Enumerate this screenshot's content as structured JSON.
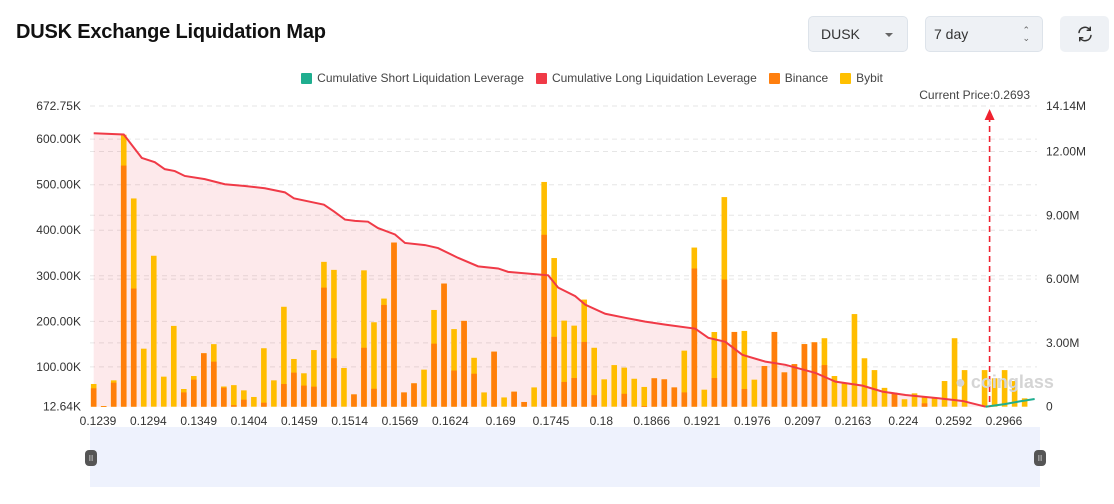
{
  "header": {
    "title": "DUSK Exchange Liquidation Map",
    "symbol_select": "DUSK",
    "period_select": "7 day",
    "refresh_icon": "refresh-icon"
  },
  "watermark": "coinglass",
  "chart_data": {
    "type": "bar",
    "title": "",
    "legend": {
      "placement": "top-center",
      "items": [
        {
          "name": "Cumulative Short Liquidation Leverage",
          "color": "#1fae8f"
        },
        {
          "name": "Cumulative Long Liquidation Leverage",
          "color": "#f03a47"
        },
        {
          "name": "Binance",
          "color": "#ff7f0e"
        },
        {
          "name": "Bybit",
          "color": "#ffc000"
        }
      ]
    },
    "current_price_label": "Current Price:0.2693",
    "current_price_bin": 89,
    "x_tick_labels": [
      "0.1239",
      "0.1294",
      "0.1349",
      "0.1404",
      "0.1459",
      "0.1514",
      "0.1569",
      "0.1624",
      "0.169",
      "0.1745",
      "0.18",
      "0.1866",
      "0.1921",
      "0.1976",
      "0.2097",
      "0.2163",
      "0.224",
      "0.2592",
      "0.2966"
    ],
    "y_left": {
      "min": 12640,
      "max": 672750,
      "tick_labels": [
        "672.75K",
        "600.00K",
        "500.00K",
        "400.00K",
        "300.00K",
        "200.00K",
        "100.00K",
        "12.64K"
      ],
      "ticks": [
        672750,
        600000,
        500000,
        400000,
        300000,
        200000,
        100000,
        12640
      ]
    },
    "y_right": {
      "min": 0,
      "max": 14140000,
      "tick_labels": [
        "14.14M",
        "12.00M",
        "9.00M",
        "6.00M",
        "3.00M",
        "0"
      ],
      "ticks": [
        14140000,
        12000000,
        9000000,
        6000000,
        3000000,
        0
      ]
    },
    "grid": true,
    "series": [
      {
        "name": "Binance",
        "unit": "K",
        "values": [
          53,
          14,
          65.4,
          542,
          272,
          0,
          0,
          0,
          0,
          44,
          72,
          130,
          111.5,
          54.4,
          16,
          28,
          0,
          21.4,
          0,
          62.5,
          87.4,
          59,
          56.6,
          274,
          119,
          0,
          39.7,
          142,
          52,
          236,
          373,
          44,
          64,
          0,
          151,
          283,
          92,
          201,
          85,
          0,
          133.5,
          0,
          45.6,
          23,
          0,
          390,
          166,
          67,
          75.6,
          154.8,
          38,
          0,
          0,
          41,
          0,
          14,
          75,
          72.7,
          55,
          44,
          316,
          0,
          75.6,
          291.8,
          176.7,
          51.5,
          0,
          102,
          176.7,
          88,
          106,
          150,
          154,
          104,
          0,
          0,
          0,
          0,
          0,
          0,
          43,
          0,
          0,
          20,
          0,
          0,
          0,
          0,
          0,
          0,
          0,
          0,
          0,
          0
        ]
      },
      {
        "name": "Bybit",
        "unit": "K",
        "values": [
          9.5,
          0,
          5.1,
          67.7,
          197.8,
          140,
          344,
          78.6,
          190,
          7.5,
          8,
          0,
          38.5,
          2.6,
          44,
          20.5,
          34,
          119.6,
          70.5,
          169.5,
          30,
          27,
          80.4,
          56.6,
          194,
          97.6,
          0,
          170,
          146,
          14,
          0,
          0,
          0,
          94,
          74,
          0,
          91,
          0,
          35,
          44,
          0,
          33,
          0,
          0,
          55,
          116,
          173,
          134.6,
          115,
          93,
          104,
          72.7,
          104,
          57.4,
          74,
          42,
          0,
          0,
          0,
          91.7,
          46,
          50,
          101,
          181,
          0,
          127.5,
          72,
          0,
          0,
          0,
          0,
          0,
          0,
          59,
          80,
          64,
          216,
          119,
          93,
          54,
          0,
          29,
          42,
          15,
          31,
          69,
          163,
          93,
          0,
          93,
          75,
          93,
          69,
          31
        ]
      },
      {
        "name": "Cumulative Long Liquidation Leverage",
        "unit": "M",
        "points": [
          [
            0,
            12.86
          ],
          [
            3,
            12.8
          ],
          [
            4.8,
            11.7
          ],
          [
            6.1,
            11.5
          ],
          [
            7.1,
            11.17
          ],
          [
            8.1,
            11.08
          ],
          [
            9.1,
            10.85
          ],
          [
            11.1,
            10.7
          ],
          [
            13.1,
            10.46
          ],
          [
            15.1,
            10.38
          ],
          [
            17.1,
            10.27
          ],
          [
            19.1,
            10.08
          ],
          [
            20,
            9.8
          ],
          [
            22,
            9.6
          ],
          [
            23,
            9.5
          ],
          [
            24,
            9.18
          ],
          [
            25.1,
            8.8
          ],
          [
            26.1,
            8.74
          ],
          [
            27.4,
            8.7
          ],
          [
            28.4,
            8.4
          ],
          [
            30.1,
            8.1
          ],
          [
            31.1,
            7.7
          ],
          [
            33.1,
            7.6
          ],
          [
            34.4,
            7.46
          ],
          [
            36.4,
            7.0
          ],
          [
            38.4,
            6.6
          ],
          [
            40.4,
            6.5
          ],
          [
            41.4,
            6.34
          ],
          [
            45.4,
            6.18
          ],
          [
            46.4,
            5.6
          ],
          [
            48.1,
            5.2
          ],
          [
            49.1,
            4.8
          ],
          [
            51.1,
            4.37
          ],
          [
            53.1,
            4.18
          ],
          [
            55.1,
            4.0
          ],
          [
            57.1,
            3.86
          ],
          [
            60.1,
            3.67
          ],
          [
            61.4,
            3.24
          ],
          [
            63.1,
            3.05
          ],
          [
            64.8,
            2.44
          ],
          [
            67.1,
            2.12
          ],
          [
            69.1,
            1.97
          ],
          [
            72.1,
            1.59
          ],
          [
            74.1,
            1.18
          ],
          [
            76.8,
            0.99
          ],
          [
            78.8,
            0.71
          ],
          [
            81.1,
            0.55
          ],
          [
            84.4,
            0.4
          ],
          [
            86.8,
            0.27
          ],
          [
            89.1,
            0
          ]
        ]
      },
      {
        "name": "Cumulative Short Liquidation Leverage",
        "unit": "M",
        "points": [
          [
            89.1,
            0
          ],
          [
            91,
            0.12
          ],
          [
            92.5,
            0.25
          ],
          [
            94,
            0.36
          ]
        ]
      }
    ]
  }
}
